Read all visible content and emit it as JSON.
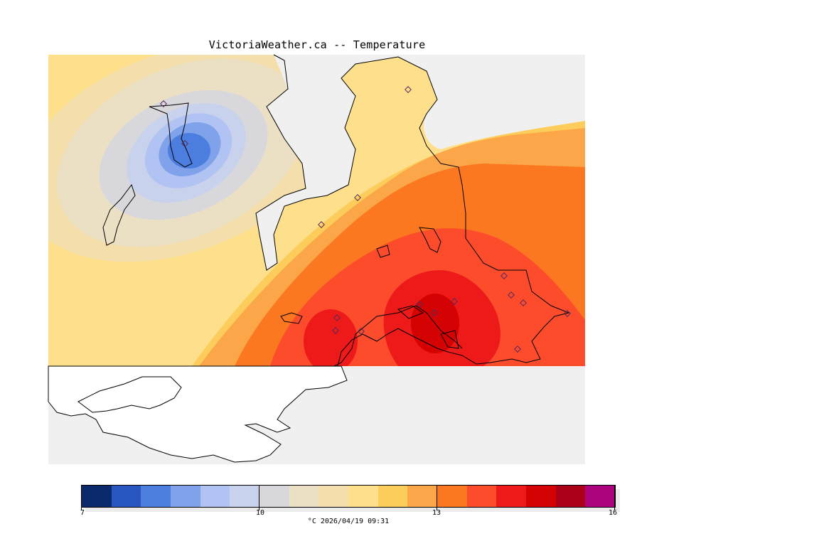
{
  "title": "VictoriaWeather.ca -- Temperature",
  "legend": {
    "colors": [
      "#0a2a6b",
      "#2a56bf",
      "#4c7ee0",
      "#7fa2ea",
      "#b0c3f2",
      "#c9d2ec",
      "#d8d8dc",
      "#ece0c4",
      "#f3deac",
      "#fee08c",
      "#fccd5a",
      "#fca64a",
      "#fc7820",
      "#fc4c2c",
      "#ee1a1a",
      "#d40202",
      "#ac0019",
      "#ac047c"
    ],
    "ticks": [
      "7",
      "10",
      "13",
      "16"
    ],
    "caption": "°C  2026/04/19 09:31"
  }
}
